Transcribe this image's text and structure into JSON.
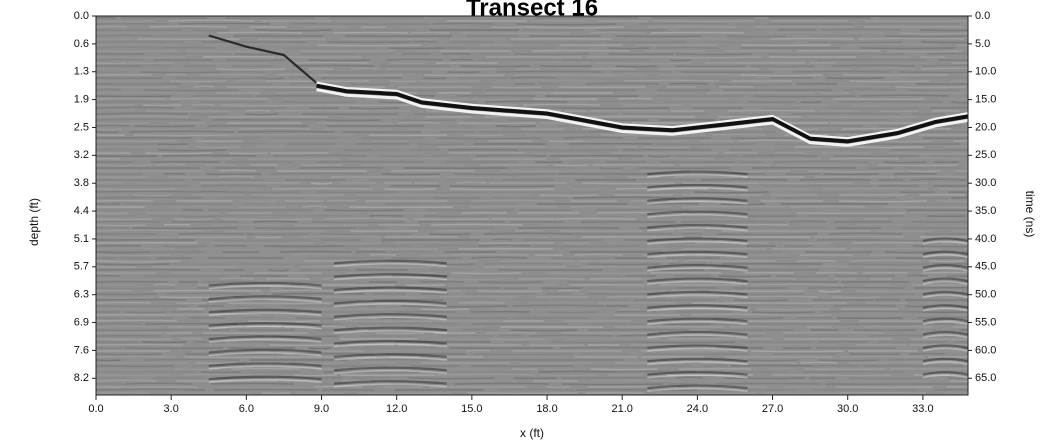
{
  "chart_data": {
    "type": "heatmap",
    "subtype": "ground-penetrating radar radargram (grayscale)",
    "title": "Transect 16",
    "xlabel": "x (ft)",
    "ylabel_left": "depth (ft)",
    "ylabel_right": "time (ns)",
    "xlim": [
      0,
      34.8
    ],
    "x_ticks": [
      "0.0",
      "3.0",
      "6.0",
      "9.0",
      "12.0",
      "15.0",
      "18.0",
      "21.0",
      "24.0",
      "27.0",
      "30.0",
      "33.0"
    ],
    "x_tick_values": [
      0,
      3,
      6,
      9,
      12,
      15,
      18,
      21,
      24,
      27,
      30,
      33
    ],
    "time_range_ns": [
      0,
      68
    ],
    "depth_ticks": [
      "0.0",
      "0.6",
      "1.3",
      "1.9",
      "2.5",
      "3.2",
      "3.8",
      "4.4",
      "5.1",
      "5.7",
      "6.3",
      "6.9",
      "7.6",
      "8.2"
    ],
    "time_ticks": [
      "0.0",
      "5.0",
      "10.0",
      "15.0",
      "20.0",
      "25.0",
      "30.0",
      "35.0",
      "40.0",
      "45.0",
      "50.0",
      "55.0",
      "60.0",
      "65.0"
    ],
    "time_tick_values": [
      0,
      5,
      10,
      15,
      20,
      25,
      30,
      35,
      40,
      45,
      50,
      55,
      60,
      65
    ],
    "strong_reflector_ns": {
      "x": [
        8.8,
        10,
        12,
        13,
        15,
        18,
        21,
        23,
        25,
        27,
        28.5,
        30,
        32,
        33.5,
        34.8
      ],
      "t": [
        12.5,
        13.5,
        14,
        15.5,
        16.5,
        17.5,
        20,
        20.5,
        19.5,
        18.5,
        22,
        22.5,
        21,
        19,
        18
      ]
    },
    "colors": {
      "background": "#ffffff",
      "plot_gray": "#8e8e8e",
      "reflector_dark": "#111111",
      "reflector_light": "#f2f2f2"
    }
  }
}
